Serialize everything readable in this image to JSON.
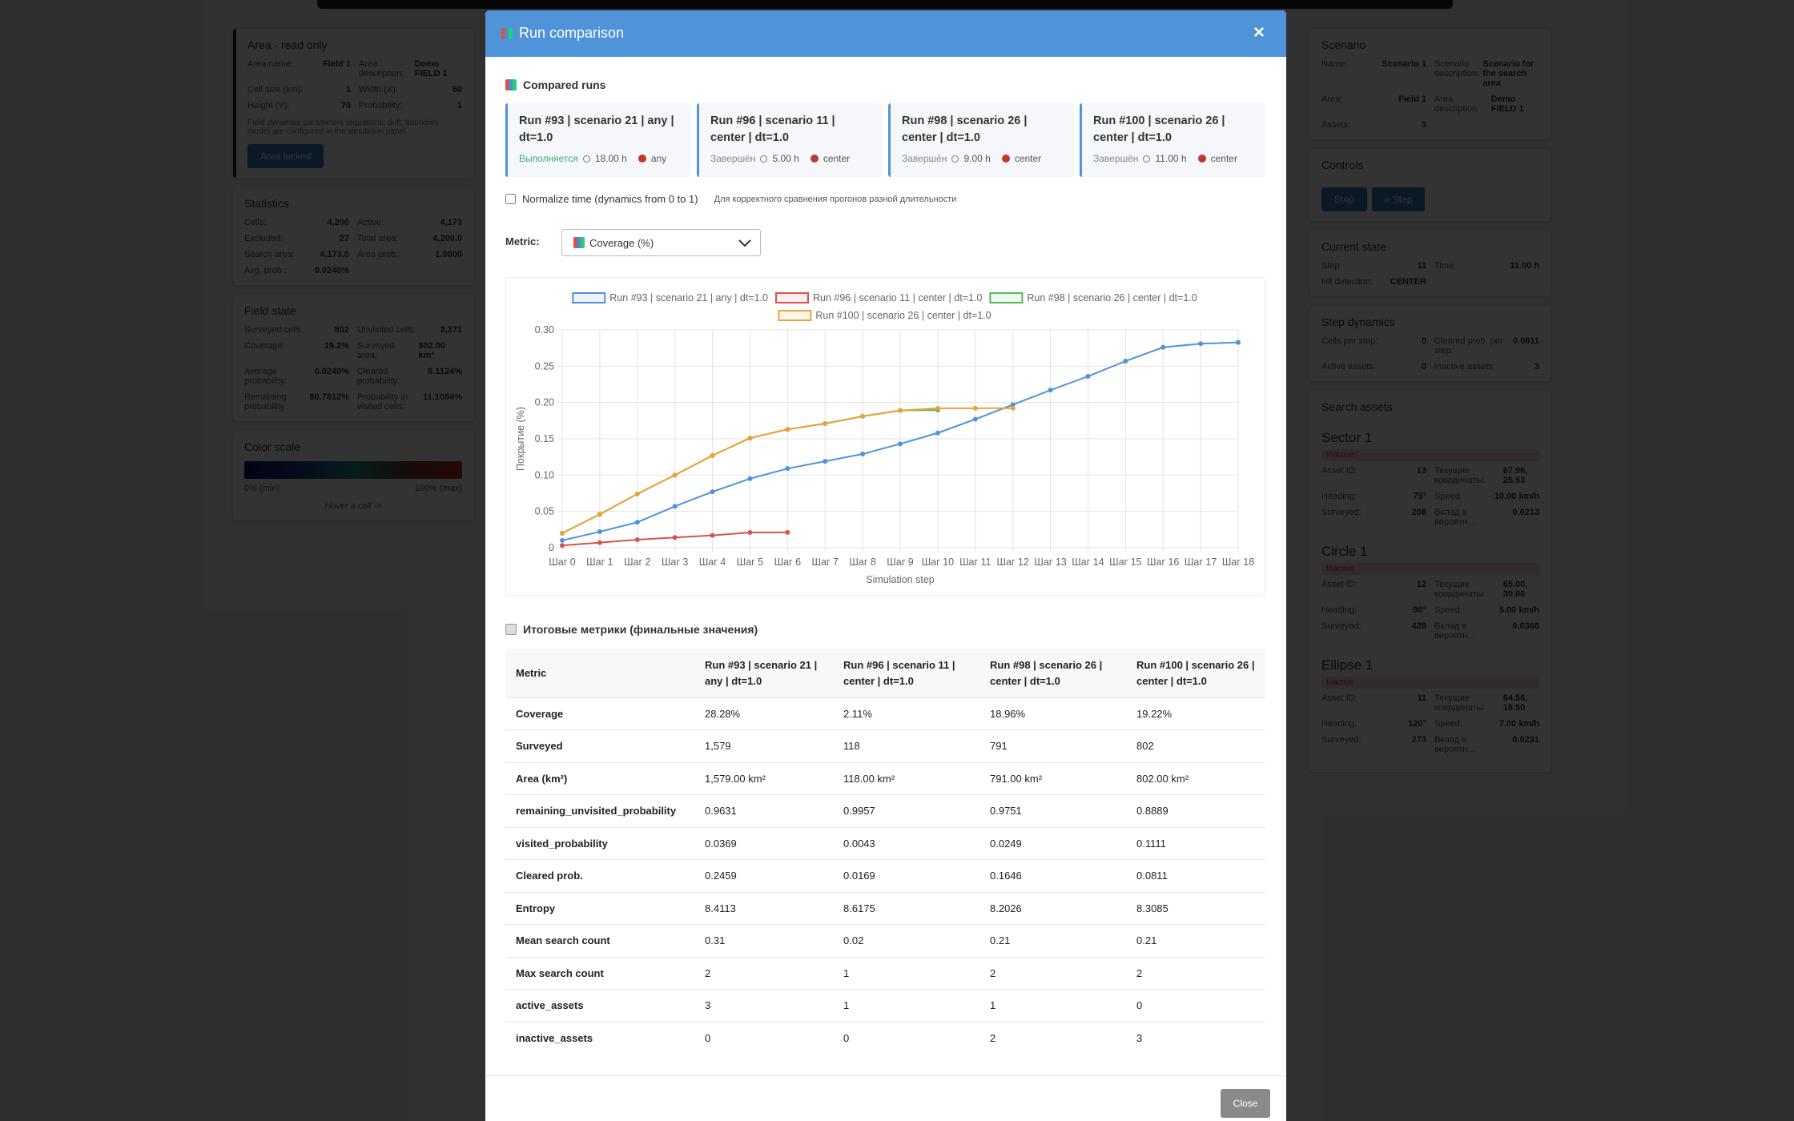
{
  "background": {
    "left_panel": {
      "sections": [
        {
          "title": "Area - read only",
          "fields": [
            [
              "Area name:",
              "Field 1"
            ],
            [
              "Area description:",
              "Demo FIELD 1"
            ],
            [
              "Cell size (km):",
              "1"
            ],
            [
              "Width (X):",
              "60"
            ],
            [
              "Height (Y):",
              "70"
            ],
            [
              "Probability:",
              "1"
            ]
          ],
          "note": "Field dynamics parameters (equations, drift, boundary mode) are configured in the simulation panel.",
          "button": "Area locked"
        },
        {
          "title": "Statistics",
          "fields": [
            [
              "Cells:",
              "4,200"
            ],
            [
              "Active:",
              "4,173"
            ],
            [
              "Excluded:",
              "27"
            ],
            [
              "Total area:",
              "4,200.0"
            ],
            [
              "Search area:",
              "4,173.0"
            ],
            [
              "Area prob.:",
              "1.0000"
            ],
            [
              "Avg. prob.:",
              "0.0240%"
            ]
          ]
        },
        {
          "title": "Field state",
          "fields": [
            [
              "Surveyed cells:",
              "802"
            ],
            [
              "Unvisited cells:",
              "3,371"
            ],
            [
              "Coverage:",
              "19.2%"
            ],
            [
              "Surveyed area:",
              "802.00 km²"
            ],
            [
              "Average probability:",
              "0.0240%"
            ],
            [
              "Cleared probability:",
              "8.1124%"
            ],
            [
              "Remaining probability:",
              "80.7812%"
            ],
            [
              "Probability in visited cells:",
              "11.1084%"
            ]
          ]
        },
        {
          "title": "Color scale",
          "min": "0% (min)",
          "max": "100% (max)",
          "hint": "Hover a cell ->"
        }
      ]
    },
    "right_panel": {
      "sections": [
        {
          "title": "Scenario",
          "fields": [
            [
              "Name:",
              "Scenario 1"
            ],
            [
              "Scenario description:",
              "Scenario for the search area"
            ],
            [
              "Area:",
              "Field 1"
            ],
            [
              "Area description:",
              "Demo FIELD 1"
            ],
            [
              "Assets:",
              "3"
            ]
          ]
        },
        {
          "title": "Controls",
          "buttons": [
            "Stop",
            "» Step"
          ]
        },
        {
          "title": "Current state",
          "fields": [
            [
              "Step:",
              "11"
            ],
            [
              "Time:",
              "11.00 h"
            ],
            [
              "Hit detection:",
              "CENTER"
            ]
          ]
        },
        {
          "title": "Step dynamics",
          "fields": [
            [
              "Cells per step:",
              "0"
            ],
            [
              "Cleared prob. per step:",
              "0.0811"
            ],
            [
              "Active assets:",
              "0"
            ],
            [
              "Inactive assets:",
              "3"
            ]
          ]
        },
        {
          "title": "Search assets",
          "assets": [
            {
              "name": "Sector 1",
              "status": "Inactive",
              "fields": [
                [
                  "Asset ID:",
                  "13"
                ],
                [
                  "Текущие координаты:",
                  "67.96, 25.53"
                ],
                [
                  "Heading:",
                  "75°"
                ],
                [
                  "Speed:",
                  "10.00 km/h"
                ],
                [
                  "Surveyed:",
                  "208"
                ],
                [
                  "Вклад в вероятн...",
                  "0.0213"
                ]
              ]
            },
            {
              "name": "Circle 1",
              "status": "Inactive",
              "fields": [
                [
                  "Asset ID:",
                  "12"
                ],
                [
                  "Текущие координаты:",
                  "65.00, 30.00"
                ],
                [
                  "Heading:",
                  "90°"
                ],
                [
                  "Speed:",
                  "5.00 km/h"
                ],
                [
                  "Surveyed:",
                  "428"
                ],
                [
                  "Вклад в вероятн...",
                  "0.0368"
                ]
              ]
            },
            {
              "name": "Ellipse 1",
              "status": "Inactive",
              "fields": [
                [
                  "Asset ID:",
                  "11"
                ],
                [
                  "Текущие координаты:",
                  "64.56, 18.50"
                ],
                [
                  "Heading:",
                  "120°"
                ],
                [
                  "Speed:",
                  "7.00 km/h"
                ],
                [
                  "Surveyed:",
                  "273"
                ],
                [
                  "Вклад в вероятн...",
                  "0.0231"
                ]
              ]
            }
          ]
        }
      ]
    }
  },
  "modal": {
    "title": "Run comparison",
    "close_icon": "×",
    "runs_heading": "Compared runs",
    "runs": [
      {
        "title": "Run #93 | scenario 21 | any | dt=1.0",
        "status": "Выполняется",
        "status_color": "#3cb371",
        "hours": "18.00 h",
        "target": "any"
      },
      {
        "title": "Run #96 | scenario 11 | center | dt=1.0",
        "status": "Завершён",
        "status_color": "#888888",
        "hours": "5.00 h",
        "target": "center"
      },
      {
        "title": "Run #98 | scenario 26 | center | dt=1.0",
        "status": "Завершён",
        "status_color": "#888888",
        "hours": "9.00 h",
        "target": "center"
      },
      {
        "title": "Run #100 | scenario 26 | center | dt=1.0",
        "status": "Завершён",
        "status_color": "#888888",
        "hours": "11.00 h",
        "target": "center"
      }
    ],
    "normalize_label": "Normalize time (dynamics from 0 to 1)",
    "normalize_hint": "Для корректного сравнения прогонов разной длительности",
    "metric_label": "Metric:",
    "metric_select": "Coverage (%)",
    "close_button": "Close"
  },
  "chart_data": {
    "type": "line",
    "ylabel": "Покрытие (%)",
    "xlabel": "Simulation step",
    "categories": [
      "Шаг 0",
      "Шаг 1",
      "Шаг 2",
      "Шаг 3",
      "Шаг 4",
      "Шаг 5",
      "Шаг 6",
      "Шаг 7",
      "Шаг 8",
      "Шаг 9",
      "Шаг 10",
      "Шаг 11",
      "Шаг 12",
      "Шаг 13",
      "Шаг 14",
      "Шаг 15",
      "Шаг 16",
      "Шаг 17",
      "Шаг 18"
    ],
    "ylim": [
      0,
      0.3
    ],
    "yticks": [
      0,
      0.05,
      {
        "value": 0.1,
        "label": "0.10"
      },
      0.15,
      {
        "value": 0.2,
        "label": "0.20"
      },
      0.25,
      {
        "value": 0.3,
        "label": "0.30"
      }
    ],
    "grid": true,
    "series": [
      {
        "name": "Run #93 | scenario 21 | any | dt=1.0",
        "color": "#4f93d8",
        "values": [
          0.01,
          0.022,
          0.035,
          0.057,
          0.077,
          0.095,
          0.109,
          0.119,
          0.129,
          0.143,
          0.158,
          0.177,
          0.197,
          0.217,
          0.236,
          0.257,
          0.276,
          0.281,
          0.2828
        ]
      },
      {
        "name": "Run #96 | scenario 11 | center | dt=1.0",
        "color": "#d9534f",
        "values": [
          0.003,
          0.007,
          0.011,
          0.014,
          0.017,
          0.021,
          0.0211,
          null,
          null,
          null,
          null,
          null,
          null,
          null,
          null,
          null,
          null,
          null,
          null
        ]
      },
      {
        "name": "Run #98 | scenario 26 | center | dt=1.0",
        "color": "#5cb85c",
        "values": [
          0.02,
          0.046,
          0.074,
          0.1,
          0.127,
          0.151,
          0.163,
          0.171,
          0.181,
          0.189,
          0.1896,
          null,
          null,
          null,
          null,
          null,
          null,
          null,
          null
        ]
      },
      {
        "name": "Run #100 | scenario 26 | center | dt=1.0",
        "color": "#e9a23b",
        "values": [
          0.02,
          0.046,
          0.074,
          0.1,
          0.127,
          0.151,
          0.163,
          0.171,
          0.181,
          0.189,
          0.192,
          0.192,
          0.1922,
          null,
          null,
          null,
          null,
          null,
          null
        ]
      }
    ]
  },
  "table": {
    "heading": "Итоговые метрики (финальные значения)",
    "columns": [
      "Metric",
      "Run #93 | scenario 21 | any | dt=1.0",
      "Run #96 | scenario 11 | center | dt=1.0",
      "Run #98 | scenario 26 | center | dt=1.0",
      "Run #100 | scenario 26 | center | dt=1.0"
    ],
    "rows": [
      [
        "Coverage",
        "28.28%",
        "2.11%",
        "18.96%",
        "19.22%"
      ],
      [
        "Surveyed",
        "1,579",
        "118",
        "791",
        "802"
      ],
      [
        "Area (km²)",
        "1,579.00 km²",
        "118.00 km²",
        "791.00 km²",
        "802.00 km²"
      ],
      [
        "remaining_unvisited_probability",
        "0.9631",
        "0.9957",
        "0.9751",
        "0.8889"
      ],
      [
        "visited_probability",
        "0.0369",
        "0.0043",
        "0.0249",
        "0.1111"
      ],
      [
        "Cleared prob.",
        "0.2459",
        "0.0169",
        "0.1646",
        "0.0811"
      ],
      [
        "Entropy",
        "8.4113",
        "8.6175",
        "8.2026",
        "8.3085"
      ],
      [
        "Mean search count",
        "0.31",
        "0.02",
        "0.21",
        "0.21"
      ],
      [
        "Max search count",
        "2",
        "1",
        "2",
        "2"
      ],
      [
        "active_assets",
        "3",
        "1",
        "1",
        "0"
      ],
      [
        "inactive_assets",
        "0",
        "0",
        "2",
        "3"
      ]
    ]
  }
}
